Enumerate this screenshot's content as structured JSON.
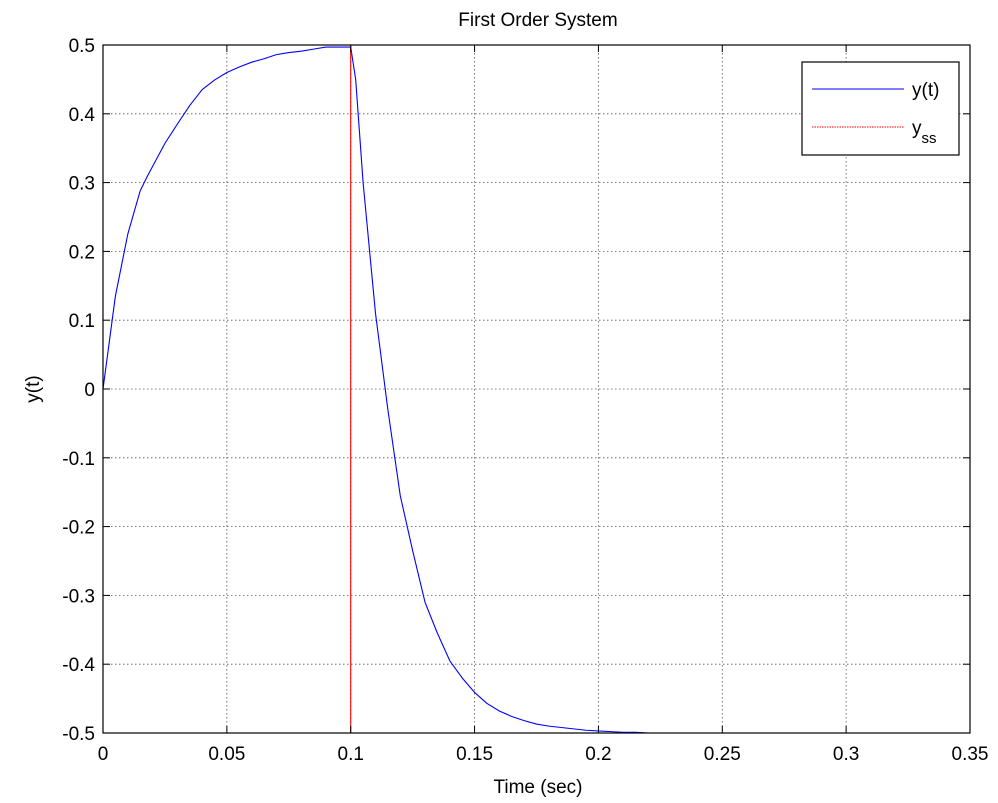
{
  "chart_data": {
    "type": "line",
    "title": "First Order System",
    "xlabel": "Time (sec)",
    "ylabel": "y(t)",
    "xlim": [
      0,
      0.35
    ],
    "ylim": [
      -0.5,
      0.5
    ],
    "grid": true,
    "grid_style": "dotted",
    "legend_position": "top-right",
    "x_ticks": [
      "0",
      "0.05",
      "0.1",
      "0.15",
      "0.2",
      "0.25",
      "0.3",
      "0.35"
    ],
    "y_ticks": [
      "-0.5",
      "-0.4",
      "-0.3",
      "-0.2",
      "-0.1",
      "0",
      "0.1",
      "0.2",
      "0.3",
      "0.4",
      "0.5"
    ],
    "series": [
      {
        "name": "y(t)",
        "color": "#0000ff",
        "line_style": "solid",
        "x": [
          0,
          0.005,
          0.01,
          0.015,
          0.018,
          0.025,
          0.03,
          0.035,
          0.04,
          0.045,
          0.05,
          0.055,
          0.06,
          0.065,
          0.07,
          0.075,
          0.08,
          0.085,
          0.09,
          0.095,
          0.1,
          0.102,
          0.105,
          0.11,
          0.115,
          0.12,
          0.125,
          0.13,
          0.135,
          0.14,
          0.145,
          0.15,
          0.155,
          0.16,
          0.165,
          0.17,
          0.175,
          0.18,
          0.185,
          0.19,
          0.195,
          0.2,
          0.205,
          0.21,
          0.215,
          0.22,
          0.23,
          0.24,
          0.25,
          0.26,
          0.27,
          0.28,
          0.29,
          0.3
        ],
        "y": [
          0,
          0.135,
          0.225,
          0.288,
          0.31,
          0.357,
          0.385,
          0.412,
          0.435,
          0.449,
          0.46,
          0.468,
          0.475,
          0.48,
          0.486,
          0.489,
          0.491,
          0.494,
          0.497,
          0.497,
          0.497,
          0.45,
          0.3,
          0.11,
          -0.03,
          -0.155,
          -0.235,
          -0.31,
          -0.355,
          -0.395,
          -0.42,
          -0.441,
          -0.457,
          -0.468,
          -0.476,
          -0.482,
          -0.487,
          -0.49,
          -0.492,
          -0.494,
          -0.496,
          -0.497,
          -0.498,
          -0.499,
          -0.499,
          -0.5,
          -0.5,
          -0.5,
          -0.5,
          -0.5,
          -0.5,
          -0.5,
          -0.5,
          -0.5
        ]
      },
      {
        "name": "y_ss",
        "name_main": "y",
        "name_sub": "ss",
        "color": "#ff0000",
        "line_style": "solid",
        "x": [
          0,
          0.1,
          0.1,
          0.3
        ],
        "y": [
          0.5,
          0.5,
          -0.5,
          -0.5
        ]
      }
    ]
  }
}
